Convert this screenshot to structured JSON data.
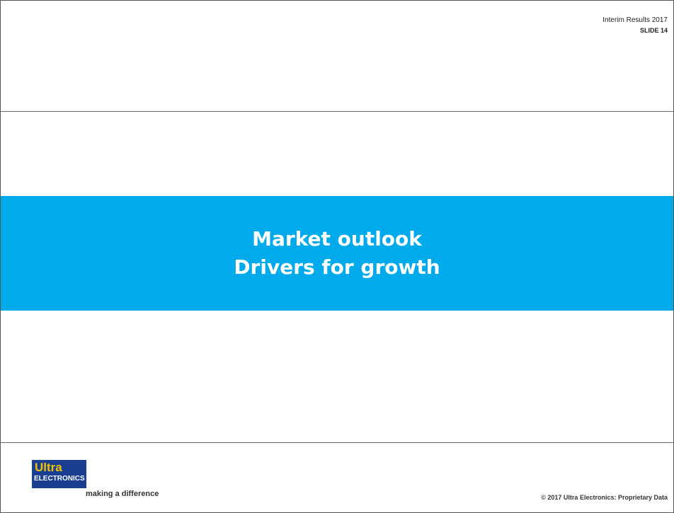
{
  "header": {
    "line1": "Interim Results 2017",
    "line2": "SLIDE 14"
  },
  "title": {
    "line1": "Market outlook",
    "line2": "Drivers for growth"
  },
  "footer": {
    "logo_top": "Ultra",
    "logo_bottom": "ELECTRONICS",
    "tagline": "making a difference",
    "copyright": "© 2017 Ultra Electronics: Proprietary Data"
  }
}
